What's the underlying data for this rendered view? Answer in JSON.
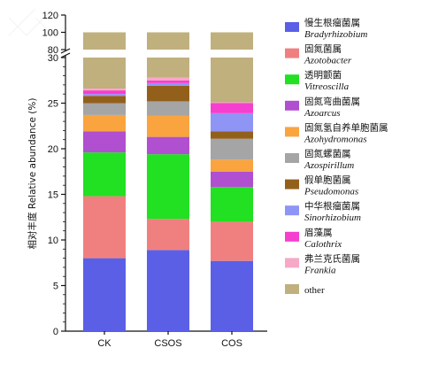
{
  "chart_data": {
    "type": "bar",
    "stacked": true,
    "categories": [
      "CK",
      "CSOS",
      "COS"
    ],
    "ylabel": "相对丰度 Relative abundance (%)",
    "y_axis": {
      "lower_range": [
        0,
        30
      ],
      "lower_ticks": [
        0,
        5,
        10,
        15,
        20,
        25,
        30
      ],
      "upper_range": [
        80,
        120
      ],
      "upper_ticks": [
        80,
        100,
        120
      ],
      "broken": true
    },
    "series": [
      {
        "name_cn": "慢生根瘤菌属",
        "name_latin": "Bradyrhizobium",
        "color": "#5a5fe6",
        "values": [
          8.0,
          8.9,
          7.7
        ]
      },
      {
        "name_cn": "固氮菌属",
        "name_latin": "Azotobacter",
        "color": "#f08080",
        "values": [
          6.8,
          3.4,
          4.3
        ]
      },
      {
        "name_cn": "透明颤菌",
        "name_latin": "Vitreoscilla",
        "color": "#22e022",
        "values": [
          4.8,
          7.1,
          3.8
        ]
      },
      {
        "name_cn": "固氮弯曲菌属",
        "name_latin": "Azoarcus",
        "color": "#b04fcf",
        "values": [
          2.3,
          1.9,
          1.7
        ]
      },
      {
        "name_cn": "固氮氢自养单胞菌属",
        "name_latin": "Azohydromonas",
        "color": "#f9a43f",
        "values": [
          1.8,
          2.3,
          1.3
        ]
      },
      {
        "name_cn": "固氮螺菌属",
        "name_latin": "Azospirillum",
        "color": "#a5a5a5",
        "values": [
          1.3,
          1.6,
          2.3
        ]
      },
      {
        "name_cn": "假单胞菌属",
        "name_latin": "Pseudomonas",
        "color": "#93601c",
        "values": [
          0.8,
          1.7,
          0.8
        ]
      },
      {
        "name_cn": "中华根瘤菌属",
        "name_latin": "Sinorhizobium",
        "color": "#8f95f5",
        "values": [
          0.2,
          0.3,
          2.0
        ]
      },
      {
        "name_cn": "眉藻属",
        "name_latin": "Calothrix",
        "color": "#f53fcf",
        "values": [
          0.4,
          0.3,
          1.1
        ]
      },
      {
        "name_cn": "弗兰克氏菌属",
        "name_latin": "Frankia",
        "color": "#f7a8c6",
        "values": [
          0.2,
          0.3,
          0.1
        ]
      },
      {
        "name_cn": "",
        "name_latin": "other",
        "color": "#bfb07e",
        "values": [
          73.4,
          72.2,
          74.9
        ]
      }
    ]
  }
}
